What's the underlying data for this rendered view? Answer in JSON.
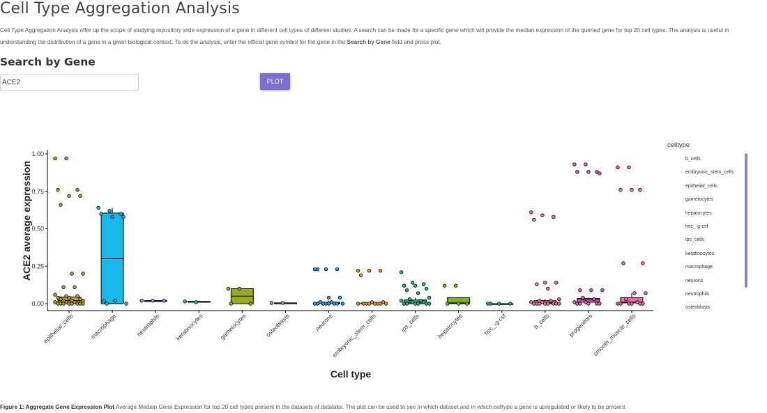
{
  "page": {
    "title": "Cell Type Aggregation Analysis",
    "intro_text": "Cell Type Aggregation Analysis offer up the scope of studying repository wide expression of a gene in different cell types of different studies. A search can be made for a specific gene which will provide the median expression of the queried gene for top 20 cell types. The analysis is useful in understanding the distribution of a gene in a given biological context. To do the analysis, enter the official gene symbol for the gene in the",
    "intro_bold": "Search by Gene",
    "intro_tail": "field and press plot."
  },
  "search": {
    "heading": "Search by Gene",
    "value": "ACE2",
    "button_label": "PLOT"
  },
  "legend": {
    "title": "celltype",
    "items": [
      "b_cells",
      "embryonic_stem_cells",
      "epithelial_cells",
      "gametocytes",
      "hepatocytes",
      "hsc_-g-csf",
      "ips_cells",
      "keratinocytes",
      "macrophage",
      "neurons",
      "neutrophils",
      "osteoblasts"
    ]
  },
  "caption": {
    "label": "Figure 1: Aggregate Gene Expression Plot",
    "text": "Average Median Gene Expression for top 20 cell types present in the datasets of datalake. The plot can be used to see in which dataset and in which celltype a gene is upregulated or likely to be present."
  },
  "chart_data": {
    "type": "box",
    "xlabel": "Cell type",
    "ylabel": "ACE2 average expression",
    "ylim": [
      0,
      1.0
    ],
    "yticks": [
      "0.00",
      "0.25",
      "0.50",
      "0.75",
      "1.00"
    ],
    "yticks_values": [
      0,
      0.25,
      0.5,
      0.75,
      1.0
    ],
    "categories": [
      {
        "name": "epithelial_cells",
        "color": "#b8a130",
        "q1": 0.0,
        "median": 0.02,
        "q3": 0.045,
        "wlo": 0.0,
        "whi": 0.05,
        "points": [
          0.97,
          0.97,
          0.76,
          0.76,
          0.72,
          0.72,
          0.66,
          0.2,
          0.2,
          0.11,
          0.11,
          0.06,
          0.05,
          0.05,
          0.04,
          0.04,
          0.03,
          0.03,
          0.02,
          0.02,
          0.02,
          0.01,
          0.01,
          0.01,
          0.0,
          0.0,
          0.0,
          0.0,
          0.0,
          0.0,
          0.0,
          0.0
        ]
      },
      {
        "name": "macrophage",
        "color": "#1ab8ea",
        "q1": 0.0,
        "median": 0.3,
        "q3": 0.605,
        "wlo": 0.0,
        "whi": 0.64,
        "points": [
          0.64,
          0.62,
          0.6,
          0.6,
          0.58,
          0.58,
          0.02,
          0.02,
          0.0,
          0.0
        ]
      },
      {
        "name": "neutrophils",
        "color": "#8b8fe6",
        "q1": 0.02,
        "median": 0.02,
        "q3": 0.02,
        "wlo": 0.02,
        "whi": 0.02,
        "points": [
          0.02,
          0.02,
          0.02
        ]
      },
      {
        "name": "keratinocytes",
        "color": "#2fb3a3",
        "q1": 0.01,
        "median": 0.012,
        "q3": 0.015,
        "wlo": 0.01,
        "whi": 0.015,
        "points": [
          0.015,
          0.01
        ]
      },
      {
        "name": "gametocytes",
        "color": "#9bab1e",
        "q1": 0.0,
        "median": 0.05,
        "q3": 0.1,
        "wlo": 0.0,
        "whi": 0.1,
        "points": [
          0.1,
          0.1,
          0.0,
          0.0
        ]
      },
      {
        "name": "osteoblasts",
        "color": "#d27be0",
        "q1": 0.005,
        "median": 0.005,
        "q3": 0.005,
        "wlo": 0.005,
        "whi": 0.005,
        "points": [
          0.005,
          0.005
        ]
      },
      {
        "name": "neurons",
        "color": "#2f9fe8",
        "q1": 0.0,
        "median": 0.003,
        "q3": 0.01,
        "wlo": 0.0,
        "whi": 0.02,
        "points": [
          0.23,
          0.23,
          0.23,
          0.23,
          0.04,
          0.04,
          0.01,
          0.01,
          0.0,
          0.0,
          0.0,
          0.0,
          0.0,
          0.0,
          0.0,
          0.0
        ]
      },
      {
        "name": "embryonic_stem_cells",
        "color": "#e09a2a",
        "q1": 0.0,
        "median": 0.002,
        "q3": 0.005,
        "wlo": 0.0,
        "whi": 0.01,
        "points": [
          0.22,
          0.22,
          0.22,
          0.19,
          0.01,
          0.01,
          0.0,
          0.0,
          0.0,
          0.0,
          0.0,
          0.0,
          0.0,
          0.0
        ]
      },
      {
        "name": "ips_cells",
        "color": "#1fb87c",
        "q1": 0.0,
        "median": 0.01,
        "q3": 0.025,
        "wlo": 0.0,
        "whi": 0.04,
        "points": [
          0.21,
          0.14,
          0.13,
          0.12,
          0.12,
          0.1,
          0.09,
          0.07,
          0.04,
          0.03,
          0.02,
          0.02,
          0.01,
          0.01,
          0.0,
          0.0,
          0.0,
          0.0,
          0.0,
          0.0
        ]
      },
      {
        "name": "hepatocytes",
        "color": "#74b81e",
        "q1": 0.0,
        "median": 0.005,
        "q3": 0.04,
        "wlo": 0.0,
        "whi": 0.04,
        "points": [
          0.12,
          0.12,
          0.0,
          0.0,
          0.0
        ]
      },
      {
        "name": "hsc_-g-csf",
        "color": "#20b5b0",
        "q1": 0.0,
        "median": 0.0,
        "q3": 0.0,
        "wlo": 0.0,
        "whi": 0.0,
        "points": [
          0.0,
          0.0,
          0.0,
          0.0
        ]
      },
      {
        "name": "b_cells",
        "color": "#e87898",
        "q1": 0.0,
        "median": 0.005,
        "q3": 0.02,
        "wlo": 0.0,
        "whi": 0.03,
        "points": [
          0.61,
          0.59,
          0.58,
          0.56,
          0.14,
          0.14,
          0.13,
          0.1,
          0.03,
          0.02,
          0.02,
          0.01,
          0.01,
          0.0,
          0.0,
          0.0,
          0.0,
          0.0,
          0.0,
          0.0,
          0.0
        ]
      },
      {
        "name": "progenitors",
        "color": "#e05fbf",
        "q1": 0.01,
        "median": 0.025,
        "q3": 0.035,
        "wlo": 0.0,
        "whi": 0.04,
        "points": [
          0.93,
          0.93,
          0.88,
          0.88,
          0.88,
          0.87,
          0.09,
          0.09,
          0.09,
          0.04,
          0.03,
          0.01,
          0.01,
          0.0,
          0.0,
          0.0,
          0.0,
          0.0
        ]
      },
      {
        "name": "smooth_muscle_cells",
        "color": "#f06aa8",
        "q1": 0.005,
        "median": 0.01,
        "q3": 0.04,
        "wlo": 0.0,
        "whi": 0.07,
        "points": [
          0.91,
          0.91,
          0.76,
          0.76,
          0.76,
          0.27,
          0.27,
          0.07,
          0.07,
          0.03,
          0.01,
          0.0,
          0.0,
          0.0,
          0.0,
          0.0,
          0.0
        ]
      }
    ]
  }
}
